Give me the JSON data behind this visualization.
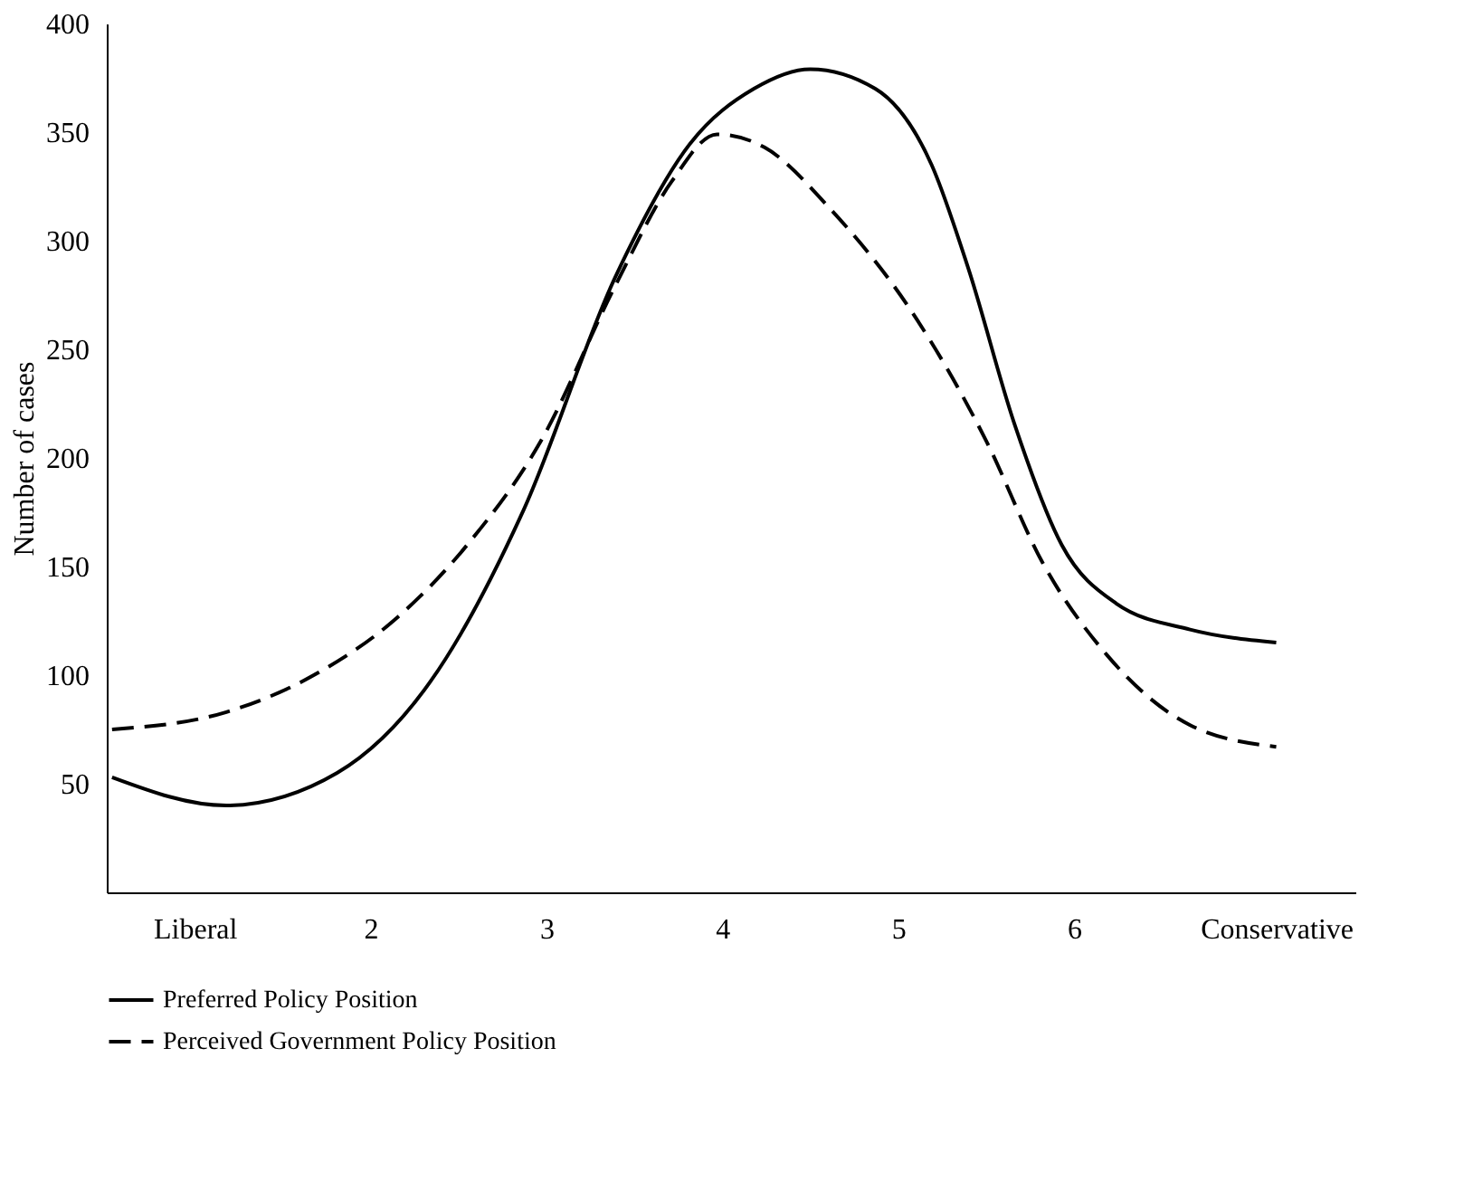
{
  "chart_data": {
    "type": "line",
    "ylabel": "Number of cases",
    "xlim": [
      0.5,
      7.6
    ],
    "xticks": [
      {
        "value": 1,
        "label": "Liberal"
      },
      2,
      3,
      4,
      5,
      6,
      {
        "value": 7.15,
        "label": "Conservative"
      }
    ],
    "ylim": [
      0,
      400
    ],
    "yticks": [
      50,
      100,
      150,
      200,
      250,
      300,
      350,
      400
    ],
    "grid": false,
    "legend": "bottom",
    "series": [
      {
        "name": "Preferred Policy Position",
        "color": "#000000",
        "line_style": "solid",
        "x": [
          0.53,
          1.18,
          1.81,
          2.34,
          2.87,
          3.39,
          3.82,
          4.18,
          4.5,
          4.87,
          5.19,
          5.4,
          5.66,
          5.93,
          6.24,
          6.66,
          7.15
        ],
        "values": [
          53,
          40,
          55,
          97,
          176,
          283,
          345,
          370,
          379,
          370,
          335,
          287,
          216,
          160,
          133,
          121,
          115
        ]
      },
      {
        "name": "Perceived Government Policy Position",
        "color": "#000000",
        "line_style": "dashed",
        "x": [
          0.53,
          1.18,
          1.7,
          2.13,
          2.55,
          2.97,
          3.39,
          3.71,
          3.97,
          4.24,
          4.61,
          5.08,
          5.5,
          5.82,
          6.19,
          6.66,
          7.15
        ],
        "values": [
          75,
          83,
          101,
          125,
          160,
          208,
          279,
          327,
          349,
          343,
          315,
          267,
          208,
          152,
          109,
          77,
          67
        ]
      }
    ]
  }
}
